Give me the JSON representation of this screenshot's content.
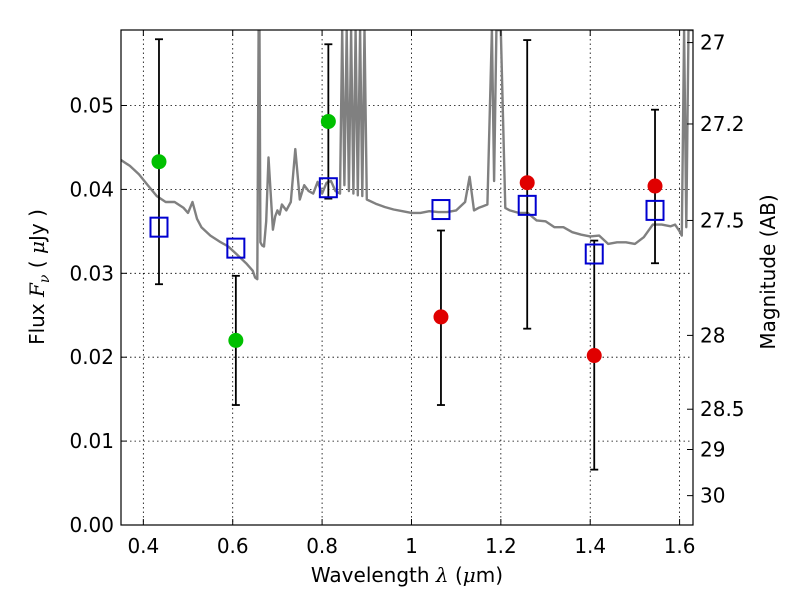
{
  "chart_data": {
    "type": "scatter",
    "xlabel_prefix": "Wavelength  ",
    "xlabel_symbol": "λ",
    "xlabel_unit_open": " (",
    "xlabel_mu": "μ",
    "xlabel_unit_close": "m)",
    "ylabel_prefix": "Flux  ",
    "ylabel_symbol": "F",
    "ylabel_sub": "ν",
    "ylabel_unit_open": "  (  ",
    "ylabel_mu": "μ",
    "ylabel_unit_close": "Jy  )",
    "y2label": "Magnitude (AB)",
    "xlim": [
      0.35,
      1.63
    ],
    "ylim": [
      0.0,
      0.059
    ],
    "x_ticks": [
      0.4,
      0.6,
      0.8,
      1.0,
      1.2,
      1.4,
      1.6
    ],
    "x_tick_labels": [
      "0.4",
      "0.6",
      "0.8",
      "1",
      "1.2",
      "1.4",
      "1.6"
    ],
    "y_ticks": [
      0.0,
      0.01,
      0.02,
      0.03,
      0.04,
      0.05
    ],
    "y_tick_labels": [
      "0.00",
      "0.01",
      "0.02",
      "0.03",
      "0.04",
      "0.05"
    ],
    "mag_ticks": [
      27,
      27.2,
      27.5,
      28,
      28.5,
      29,
      30
    ],
    "mag_tick_labels": [
      "27",
      "27.2",
      "27.5",
      "28",
      "28.5",
      "29",
      "30"
    ],
    "mag_tick_label_flux": [
      0.0575,
      0.0478,
      0.0363,
      0.0226,
      0.0138,
      0.009,
      0.0035
    ],
    "grid": true,
    "series": [
      {
        "name": "photometry-green",
        "color": "#00c000",
        "x": [
          0.435,
          0.607,
          0.814
        ],
        "y": [
          0.0433,
          0.022,
          0.0481
        ],
        "yerr_low": [
          0.0287,
          0.0143,
          0.0389
        ],
        "yerr_high": [
          0.0579,
          0.0297,
          0.0573
        ]
      },
      {
        "name": "photometry-red",
        "color": "#e00000",
        "x": [
          1.066,
          1.259,
          1.409,
          1.545
        ],
        "y": [
          0.0248,
          0.0408,
          0.0202,
          0.0404
        ],
        "yerr_low": [
          0.0143,
          0.0234,
          0.0066,
          0.0312
        ],
        "yerr_high": [
          0.0351,
          0.0578,
          0.0339,
          0.0495
        ]
      },
      {
        "name": "model-photometry",
        "color": "#0000d0",
        "x": [
          0.435,
          0.607,
          0.814,
          1.066,
          1.259,
          1.409,
          1.545
        ],
        "y": [
          0.0355,
          0.033,
          0.0402,
          0.0376,
          0.0381,
          0.0323,
          0.0375
        ]
      }
    ],
    "spectrum": {
      "color": "#808080",
      "x": [
        0.35,
        0.37,
        0.39,
        0.41,
        0.43,
        0.45,
        0.47,
        0.49,
        0.5,
        0.51,
        0.52,
        0.53,
        0.55,
        0.57,
        0.59,
        0.61,
        0.63,
        0.645,
        0.65,
        0.655,
        0.658,
        0.66,
        0.662,
        0.666,
        0.67,
        0.675,
        0.68,
        0.69,
        0.695,
        0.7,
        0.705,
        0.71,
        0.72,
        0.73,
        0.74,
        0.75,
        0.76,
        0.77,
        0.78,
        0.79,
        0.8,
        0.81,
        0.82,
        0.83,
        0.84,
        0.845,
        0.85,
        0.855,
        0.86,
        0.865,
        0.87,
        0.875,
        0.88,
        0.885,
        0.89,
        0.895,
        0.9,
        0.92,
        0.94,
        0.96,
        0.98,
        1.0,
        1.02,
        1.04,
        1.06,
        1.08,
        1.1,
        1.12,
        1.13,
        1.14,
        1.15,
        1.16,
        1.17,
        1.18,
        1.185,
        1.19,
        1.2,
        1.21,
        1.22,
        1.24,
        1.26,
        1.28,
        1.3,
        1.32,
        1.34,
        1.36,
        1.38,
        1.4,
        1.42,
        1.44,
        1.46,
        1.48,
        1.5,
        1.52,
        1.54,
        1.56,
        1.58,
        1.59,
        1.6,
        1.605,
        1.61,
        1.615,
        1.62,
        1.625,
        1.63
      ],
      "y": [
        0.0435,
        0.0428,
        0.0418,
        0.0405,
        0.0392,
        0.0385,
        0.0385,
        0.0378,
        0.0372,
        0.0385,
        0.0365,
        0.0355,
        0.0345,
        0.0338,
        0.0332,
        0.0322,
        0.0312,
        0.0303,
        0.0295,
        0.0293,
        0.059,
        0.059,
        0.0337,
        0.0333,
        0.0332,
        0.0362,
        0.0438,
        0.0352,
        0.0368,
        0.0375,
        0.037,
        0.0382,
        0.0375,
        0.0385,
        0.0448,
        0.0388,
        0.0405,
        0.0398,
        0.0395,
        0.0409,
        0.0395,
        0.0408,
        0.041,
        0.0398,
        0.0395,
        0.059,
        0.0405,
        0.059,
        0.0398,
        0.059,
        0.0395,
        0.059,
        0.0393,
        0.059,
        0.0392,
        0.059,
        0.0388,
        0.0383,
        0.0379,
        0.0376,
        0.0374,
        0.0372,
        0.0372,
        0.0374,
        0.0373,
        0.0373,
        0.0375,
        0.0385,
        0.0415,
        0.0375,
        0.0378,
        0.038,
        0.0382,
        0.059,
        0.041,
        0.059,
        0.059,
        0.0378,
        0.0375,
        0.0372,
        0.0372,
        0.0363,
        0.0362,
        0.0355,
        0.0355,
        0.0349,
        0.0346,
        0.0344,
        0.0345,
        0.0335,
        0.0337,
        0.0337,
        0.0335,
        0.0343,
        0.0358,
        0.0358,
        0.0356,
        0.0358,
        0.035,
        0.0345,
        0.059,
        0.0355,
        0.059,
        0.059,
        0.059
      ]
    }
  }
}
